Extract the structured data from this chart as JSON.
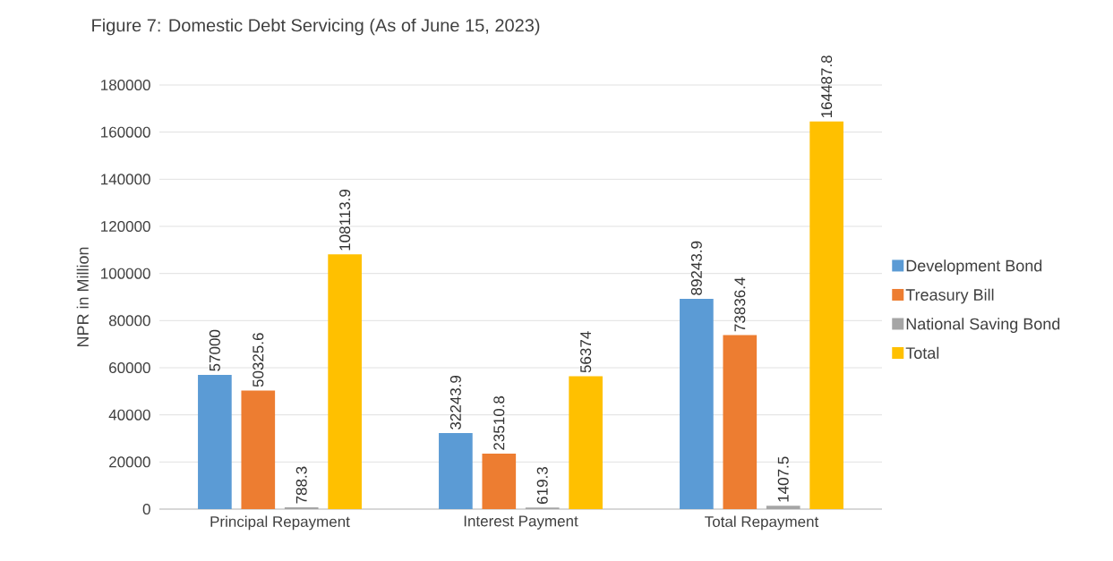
{
  "chart_data": {
    "type": "bar",
    "title": "Figure 7: Domestic Debt Servicing (As of June 15, 2023)",
    "ylabel": "NPR in Million",
    "categories": [
      "Principal Repayment",
      "Interest Payment",
      "Total Repayment"
    ],
    "series": [
      {
        "name": "Development Bond",
        "color": "#5b9bd5",
        "values": [
          57000,
          32243.9,
          89243.9
        ]
      },
      {
        "name": "Treasury Bill",
        "color": "#ed7d31",
        "values": [
          50325.6,
          23510.8,
          73836.4
        ]
      },
      {
        "name": "National Saving Bond",
        "color": "#a5a5a5",
        "values": [
          788.3,
          619.3,
          1407.5
        ]
      },
      {
        "name": "Total",
        "color": "#ffc000",
        "values": [
          108113.9,
          56374,
          164487.8
        ]
      }
    ],
    "ylim": [
      0,
      180000
    ],
    "yticks": [
      0,
      20000,
      40000,
      60000,
      80000,
      100000,
      120000,
      140000,
      160000,
      180000
    ],
    "grid": "y",
    "legend": "right",
    "data_labels": true
  }
}
